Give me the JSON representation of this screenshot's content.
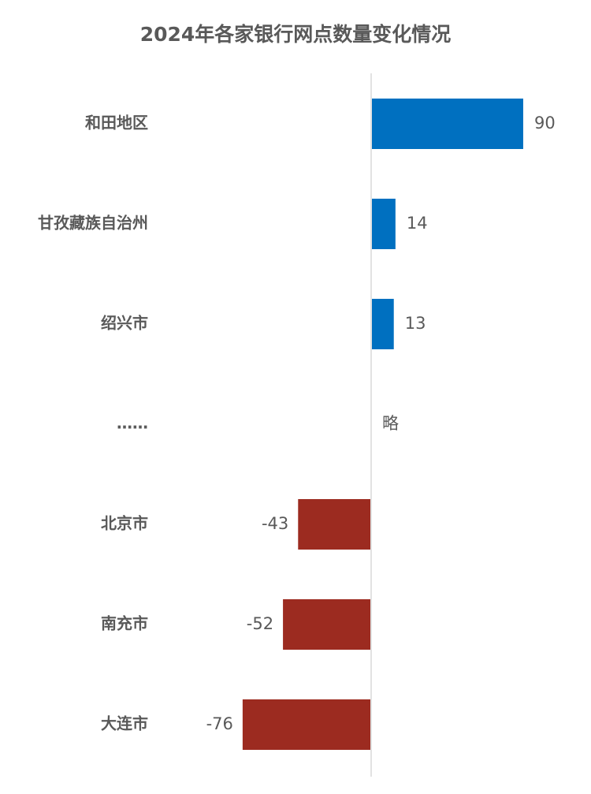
{
  "chart_data": {
    "type": "bar",
    "orientation": "horizontal",
    "title": "2024年各家银行网点数量变化情况",
    "categories": [
      "和田地区",
      "甘孜藏族自治州",
      "绍兴市",
      "……",
      "北京市",
      "南充市",
      "大连市"
    ],
    "values": [
      90,
      14,
      13,
      null,
      -43,
      -52,
      -76
    ],
    "value_labels": [
      "90",
      "14",
      "13",
      "略",
      "-43",
      "-52",
      "-76"
    ],
    "colors": [
      "#0070c0",
      "#0070c0",
      "#0070c0",
      null,
      "#9c2b20",
      "#9c2b20",
      "#9c2b20"
    ],
    "grid": false
  }
}
